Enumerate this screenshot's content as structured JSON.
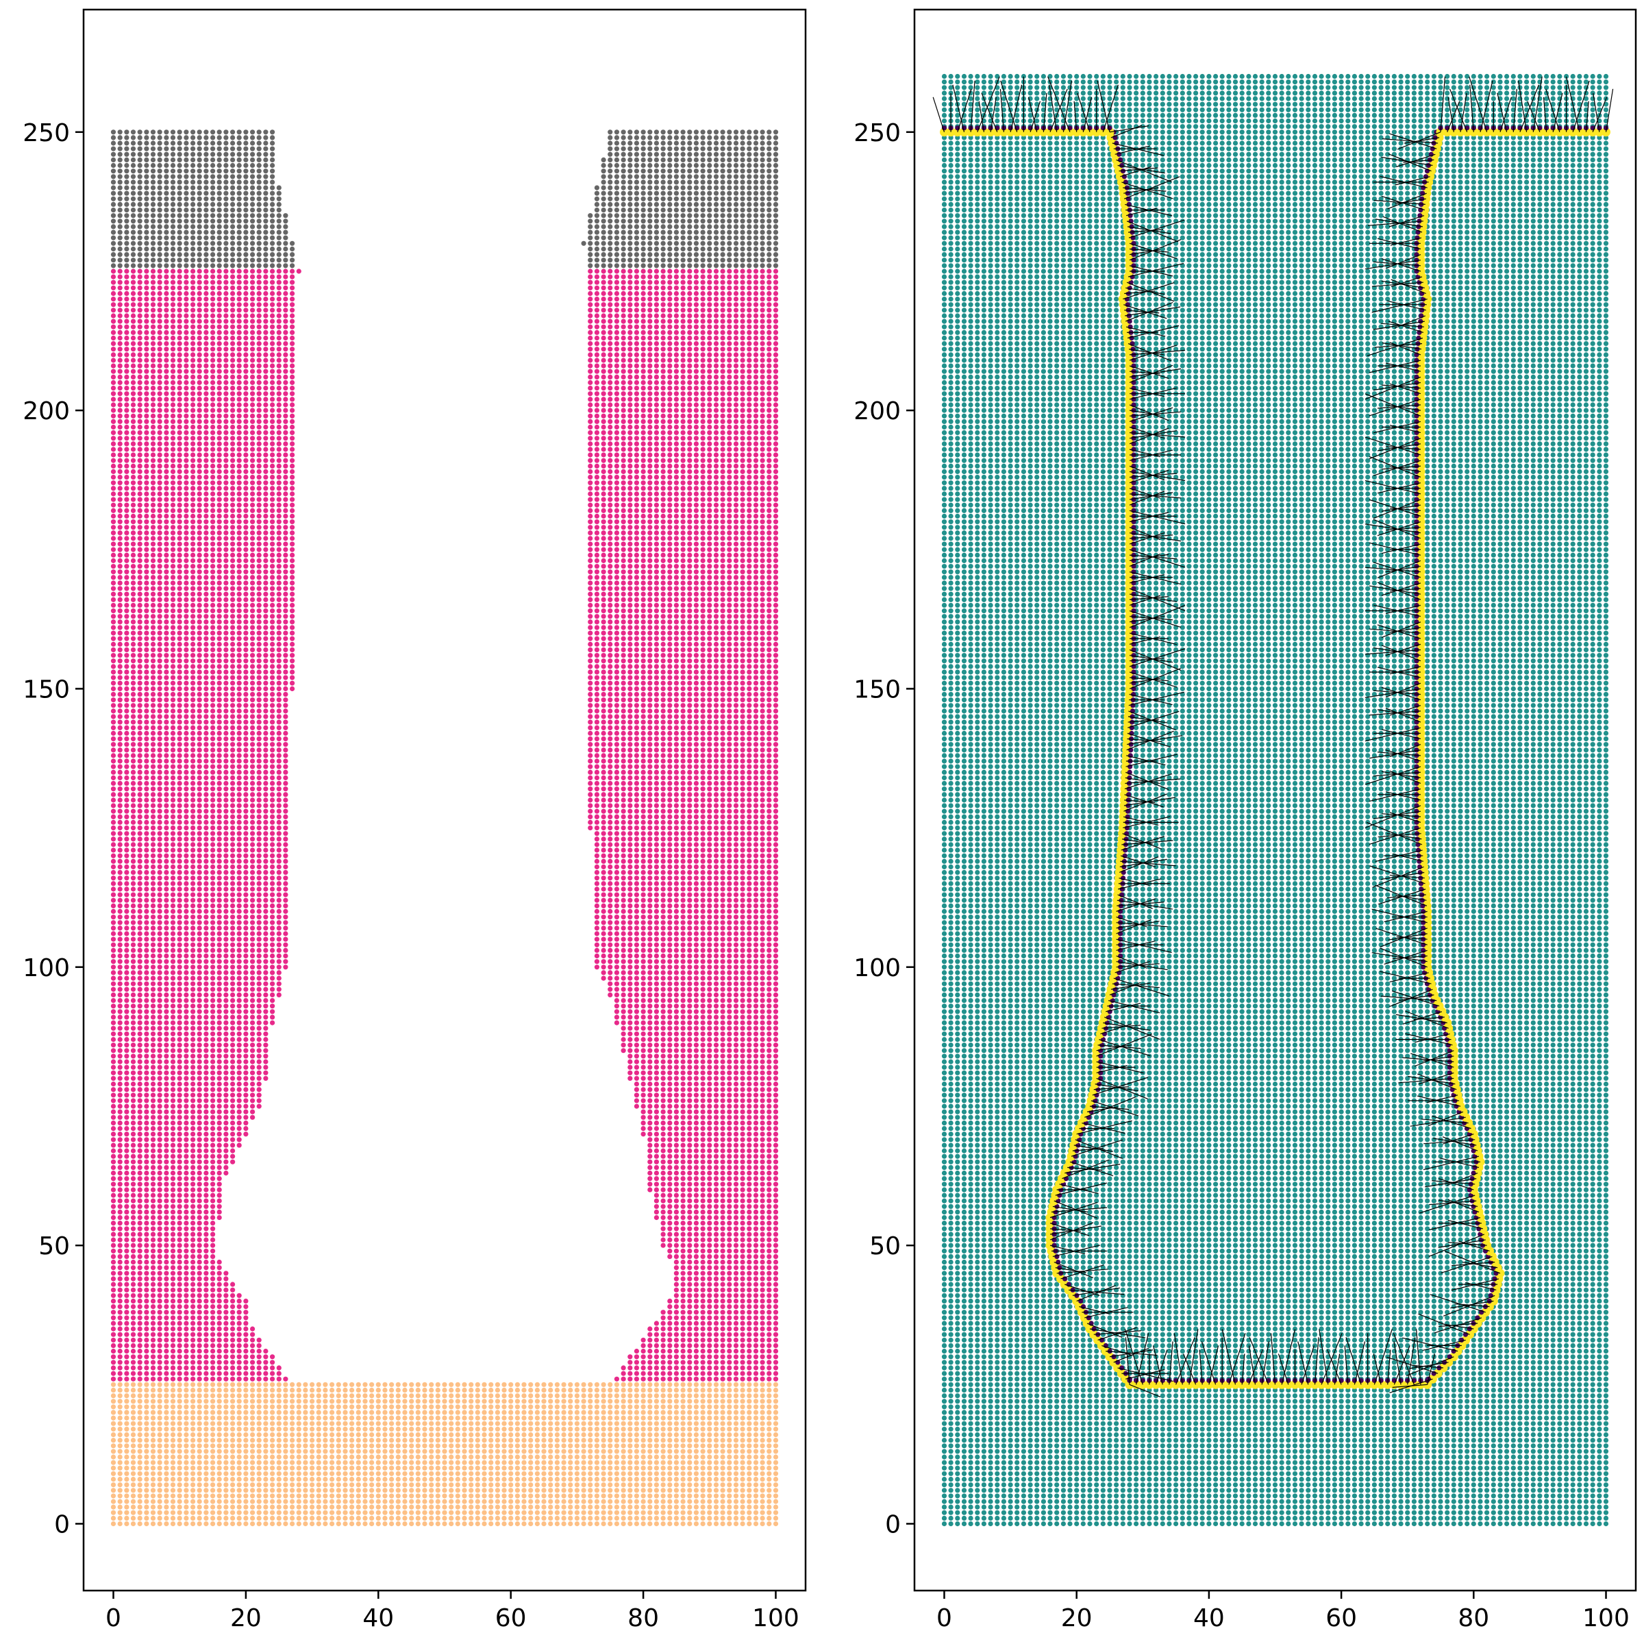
{
  "chart_data": [
    {
      "type": "scatter",
      "title": "",
      "xlabel": "",
      "ylabel": "",
      "xlim": [
        -4.5,
        104.5
      ],
      "ylim": [
        -12,
        272
      ],
      "xticks": [
        0,
        20,
        40,
        60,
        80,
        100
      ],
      "yticks": [
        0,
        50,
        100,
        150,
        200,
        250
      ],
      "grid": false,
      "description_of_layers": "particle grid with spacing 2.5 in x and y",
      "layers": [
        {
          "region": "bottom",
          "y_range": [
            0,
            25
          ],
          "x_range": [
            0,
            100
          ],
          "color": "#fdc086"
        },
        {
          "region": "middle",
          "y_range": [
            25,
            225
          ],
          "x_range": [
            0,
            100
          ],
          "color": "#e7298a",
          "cavity": true
        },
        {
          "region": "top",
          "y_range": [
            225,
            250
          ],
          "x_range": [
            0,
            100
          ],
          "color": "#666666",
          "cavity": true
        }
      ],
      "cavity_profile": {
        "y": [
          25,
          30,
          35,
          40,
          45,
          50,
          55,
          60,
          65,
          70,
          75,
          80,
          85,
          90,
          95,
          100,
          110,
          125,
          150,
          175,
          200,
          225,
          230,
          240,
          250
        ],
        "x_left": [
          27,
          24,
          21,
          20,
          17,
          15,
          16,
          16,
          18,
          20,
          22,
          23,
          23,
          24,
          25,
          26,
          26,
          26,
          27,
          27,
          27,
          28,
          27,
          25,
          24
        ],
        "x_right": [
          75,
          78,
          81,
          84,
          85,
          83,
          82,
          81,
          81,
          80,
          79,
          78,
          77,
          76,
          75,
          73,
          73,
          72,
          72,
          72,
          72,
          72,
          71,
          73,
          75
        ]
      }
    },
    {
      "type": "scatter",
      "title": "",
      "xlabel": "",
      "ylabel": "",
      "xlim": [
        -4.5,
        104.5
      ],
      "ylim": [
        -12,
        272
      ],
      "xticks": [
        0,
        20,
        40,
        60,
        80,
        100
      ],
      "yticks": [
        0,
        50,
        100,
        150,
        200,
        250
      ],
      "grid": false,
      "description_of_layers": "full particle grid; boundary particles highlighted with surface normals",
      "background_color": "#21918c",
      "boundary_color": "#fde725",
      "interior_boundary_color": "#440154",
      "normal_color": "#000000",
      "grid_y_range": [
        0,
        260
      ],
      "grid_x_range": [
        0,
        100
      ],
      "boundary_profile": {
        "y": [
          25,
          30,
          35,
          40,
          45,
          50,
          55,
          60,
          65,
          70,
          75,
          80,
          85,
          90,
          95,
          100,
          110,
          125,
          150,
          175,
          200,
          210,
          220,
          225,
          230,
          240,
          250
        ],
        "x_left": [
          28,
          25,
          22,
          20,
          17,
          16,
          16,
          17,
          19,
          20,
          22,
          23,
          23,
          24,
          25,
          26,
          26,
          27,
          28,
          28,
          28,
          28,
          27,
          28,
          28,
          27,
          25
        ],
        "x_right": [
          73,
          77,
          80,
          83,
          84,
          82,
          81,
          80,
          81,
          80,
          78,
          77,
          77,
          76,
          74,
          73,
          73,
          72,
          72,
          72,
          72,
          72,
          73,
          72,
          72,
          73,
          75
        ]
      }
    }
  ]
}
